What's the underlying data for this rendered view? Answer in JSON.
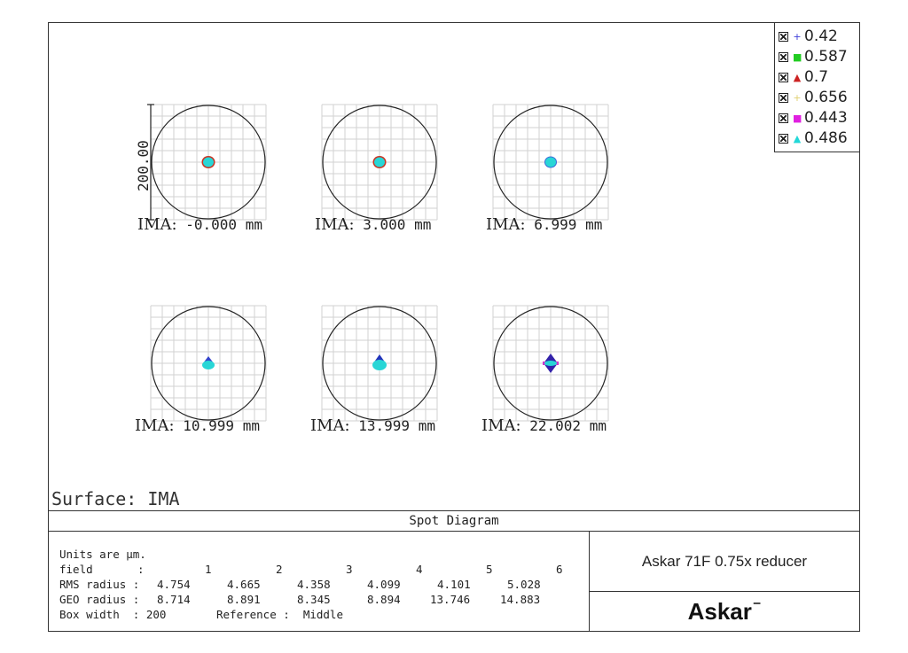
{
  "legend": [
    {
      "label": "0.42",
      "marker": "+",
      "color": "#3d3dd9"
    },
    {
      "label": "0.587",
      "marker": "■",
      "color": "#22cc22"
    },
    {
      "label": "0.7",
      "marker": "▲",
      "color": "#cc2222"
    },
    {
      "label": "0.656",
      "marker": "+",
      "color": "#e0d070"
    },
    {
      "label": "0.443",
      "marker": "■",
      "color": "#e020e0"
    },
    {
      "label": "0.486",
      "marker": "▲",
      "color": "#22d8d8"
    }
  ],
  "scale_label": "200.00",
  "ima_prefix": "IMA:",
  "fields": [
    {
      "value": "-0.000",
      "unit": "mm"
    },
    {
      "value": "3.000",
      "unit": "mm"
    },
    {
      "value": "6.999",
      "unit": "mm"
    },
    {
      "value": "10.999",
      "unit": "mm"
    },
    {
      "value": "13.999",
      "unit": "mm"
    },
    {
      "value": "22.002",
      "unit": "mm"
    }
  ],
  "surface": "Surface: IMA",
  "title": "Spot Diagram",
  "info": {
    "units": "Units are µm.",
    "field_label": "field",
    "field_numbers": [
      "1",
      "2",
      "3",
      "4",
      "5",
      "6"
    ],
    "rms_label": "RMS radius :",
    "rms": [
      "4.754",
      "4.665",
      "4.358",
      "4.099",
      "4.101",
      "5.028"
    ],
    "geo_label": "GEO radius :",
    "geo": [
      "8.714",
      "8.891",
      "8.345",
      "8.894",
      "13.746",
      "14.883"
    ],
    "box_width": "Box width  : 200",
    "reference": "Reference :  Middle"
  },
  "product": "Askar 71F 0.75x reducer",
  "brand": "Askar"
}
